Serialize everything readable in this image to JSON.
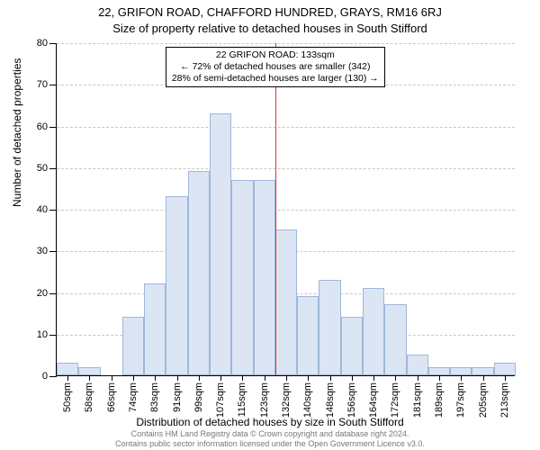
{
  "chart": {
    "type": "histogram",
    "title_line1": "22, GRIFON ROAD, CHAFFORD HUNDRED, GRAYS, RM16 6RJ",
    "title_line2": "Size of property relative to detached houses in South Stifford",
    "title_fontsize": 13,
    "y_axis_title": "Number of detached properties",
    "x_axis_title": "Distribution of detached houses by size in South Stifford",
    "axis_title_fontsize": 12,
    "tick_fontsize": 11,
    "background_color": "#ffffff",
    "grid_color": "#c8c8c8",
    "bar_fill": "#dbe5f4",
    "bar_border": "#9fb7d9",
    "refline_color": "#d33",
    "ylim": [
      0,
      80
    ],
    "ytick_step": 10,
    "x_labels": [
      "50sqm",
      "58sqm",
      "66sqm",
      "74sqm",
      "83sqm",
      "91sqm",
      "99sqm",
      "107sqm",
      "115sqm",
      "123sqm",
      "132sqm",
      "140sqm",
      "148sqm",
      "156sqm",
      "164sqm",
      "172sqm",
      "181sqm",
      "189sqm",
      "197sqm",
      "205sqm",
      "213sqm"
    ],
    "bins": [
      {
        "v": 3
      },
      {
        "v": 2
      },
      {
        "v": 0
      },
      {
        "v": 14
      },
      {
        "v": 22
      },
      {
        "v": 43
      },
      {
        "v": 49
      },
      {
        "v": 63
      },
      {
        "v": 47
      },
      {
        "v": 47
      },
      {
        "v": 35
      },
      {
        "v": 19
      },
      {
        "v": 23
      },
      {
        "v": 14
      },
      {
        "v": 21
      },
      {
        "v": 17
      },
      {
        "v": 5
      },
      {
        "v": 2
      },
      {
        "v": 2
      },
      {
        "v": 2
      },
      {
        "v": 3
      }
    ],
    "reference_bin_index": 10,
    "annotation": {
      "line1": "22 GRIFON ROAD: 133sqm",
      "line2": "← 72% of detached houses are smaller (342)",
      "line3": "28% of semi-detached houses are larger (130) →",
      "border_color": "#000000",
      "background_color": "#ffffff",
      "fontsize": 10.5
    }
  },
  "footer": {
    "line1": "Contains HM Land Registry data © Crown copyright and database right 2024.",
    "line2": "Contains public sector information licensed under the Open Government Licence v3.0.",
    "fontsize": 9,
    "color": "#777777"
  }
}
